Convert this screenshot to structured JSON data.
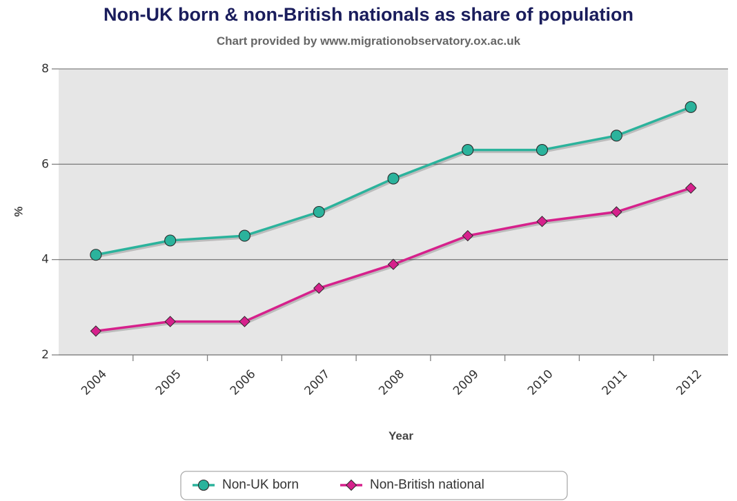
{
  "chart_data": {
    "type": "line",
    "title": "Non-UK born & non-British nationals as share of population",
    "subtitle": "Chart provided by www.migrationobservatory.ox.ac.uk",
    "xlabel": "Year",
    "ylabel": "%",
    "categories": [
      "2004",
      "2005",
      "2006",
      "2007",
      "2008",
      "2009",
      "2010",
      "2011",
      "2012"
    ],
    "ylim": [
      2,
      8
    ],
    "yticks": [
      2,
      4,
      6,
      8
    ],
    "grid": true,
    "legend_position": "bottom",
    "series": [
      {
        "name": "Non-UK born",
        "color": "#2bb39c",
        "marker": "circle",
        "values": [
          4.1,
          4.4,
          4.5,
          5.0,
          5.7,
          6.3,
          6.3,
          6.6,
          7.2
        ]
      },
      {
        "name": "Non-British national",
        "color": "#d6218c",
        "marker": "diamond",
        "values": [
          2.5,
          2.7,
          2.7,
          3.4,
          3.9,
          4.5,
          4.8,
          5.0,
          5.5
        ]
      }
    ]
  }
}
